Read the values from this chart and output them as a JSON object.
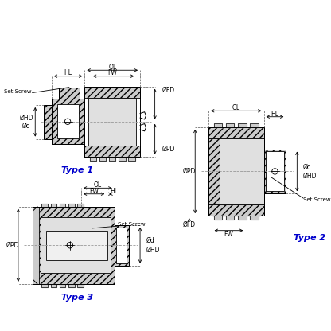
{
  "bg_color": "#ffffff",
  "line_color": "#000000",
  "type_color": "#0000cc",
  "hatch_color": "#888888",
  "type1_label": "Type 1",
  "type2_label": "Type 2",
  "type3_label": "Type 3"
}
